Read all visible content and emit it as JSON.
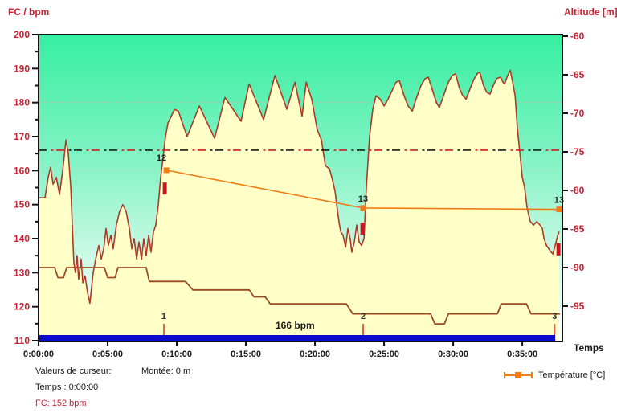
{
  "axes": {
    "left_title": "FC / bpm",
    "right_title": "Altitude [m]",
    "x_title": "Temps",
    "left_ticks": [
      200,
      190,
      180,
      170,
      160,
      150,
      140,
      130,
      120,
      110
    ],
    "right_ticks": [
      -60,
      -65,
      -70,
      -75,
      -80,
      -85,
      -90,
      -95
    ],
    "x_tick_labels": [
      "0:00:00",
      "0:05:00",
      "0:10:00",
      "0:15:00",
      "0:20:00",
      "0:25:00",
      "0:30:00",
      "0:35:00"
    ],
    "x_tick_seconds": [
      0,
      300,
      600,
      900,
      1200,
      1500,
      1800,
      2100
    ],
    "axis_text_color": "#cc2233",
    "x_text_color": "#1a1a1a"
  },
  "chart_data": {
    "type": "line",
    "title": "",
    "x_range_seconds": [
      0,
      2274
    ],
    "y_left_range": [
      110,
      200
    ],
    "y_right_range": [
      -99.6,
      -60
    ],
    "bg_gradient": [
      "#35efa0",
      "#86f3c6",
      "#d8fbec",
      "#ffffff"
    ],
    "grid_dotted": [
      {
        "bpm": 180,
        "color": "#e3a7ad"
      },
      {
        "bpm": 160,
        "color": "#a6d9c2"
      }
    ],
    "target_line": {
      "bpm": 166,
      "label": "166 bpm",
      "colors": [
        "#1a1a1a",
        "#cc2222"
      ]
    },
    "series": {
      "fc": {
        "name": "FC",
        "unit": "bpm",
        "color": "#ad3a28",
        "fill": "#ffffc8",
        "points": [
          [
            0,
            152
          ],
          [
            28,
            152
          ],
          [
            42,
            158
          ],
          [
            52,
            161
          ],
          [
            63,
            156
          ],
          [
            77,
            158
          ],
          [
            91,
            153
          ],
          [
            105,
            160
          ],
          [
            119,
            169
          ],
          [
            129,
            165
          ],
          [
            140,
            155
          ],
          [
            153,
            133
          ],
          [
            160,
            130
          ],
          [
            167,
            135
          ],
          [
            174,
            128
          ],
          [
            185,
            134
          ],
          [
            192,
            127
          ],
          [
            202,
            129
          ],
          [
            213,
            124
          ],
          [
            223,
            121
          ],
          [
            237,
            130
          ],
          [
            251,
            135
          ],
          [
            262,
            138
          ],
          [
            272,
            134
          ],
          [
            283,
            137
          ],
          [
            293,
            143
          ],
          [
            303,
            138
          ],
          [
            314,
            141
          ],
          [
            324,
            137
          ],
          [
            338,
            144
          ],
          [
            352,
            148
          ],
          [
            366,
            150
          ],
          [
            380,
            148
          ],
          [
            394,
            143
          ],
          [
            405,
            137
          ],
          [
            415,
            140
          ],
          [
            426,
            134
          ],
          [
            436,
            139
          ],
          [
            447,
            134
          ],
          [
            457,
            140
          ],
          [
            467,
            135
          ],
          [
            478,
            141
          ],
          [
            488,
            136
          ],
          [
            499,
            142
          ],
          [
            509,
            144
          ],
          [
            520,
            150
          ],
          [
            530,
            158
          ],
          [
            541,
            164
          ],
          [
            551,
            170
          ],
          [
            562,
            174
          ],
          [
            576,
            176
          ],
          [
            590,
            178
          ],
          [
            607,
            177.5
          ],
          [
            645,
            170
          ],
          [
            698,
            179
          ],
          [
            764,
            169.5
          ],
          [
            809,
            181.5
          ],
          [
            879,
            174.5
          ],
          [
            914,
            185.5
          ],
          [
            977,
            175
          ],
          [
            1026,
            188
          ],
          [
            1078,
            178
          ],
          [
            1113,
            186
          ],
          [
            1144,
            176
          ],
          [
            1162,
            186
          ],
          [
            1186,
            181
          ],
          [
            1210,
            172
          ],
          [
            1228,
            169
          ],
          [
            1245,
            161.5
          ],
          [
            1263,
            160.5
          ],
          [
            1277,
            157
          ],
          [
            1287,
            154
          ],
          [
            1298,
            148
          ],
          [
            1305,
            144.5
          ],
          [
            1312,
            142
          ],
          [
            1322,
            141
          ],
          [
            1333,
            137.5
          ],
          [
            1343,
            143
          ],
          [
            1353,
            140
          ],
          [
            1360,
            136
          ],
          [
            1371,
            139
          ],
          [
            1381,
            144
          ],
          [
            1392,
            139
          ],
          [
            1402,
            138
          ],
          [
            1413,
            140
          ],
          [
            1423,
            155
          ],
          [
            1437,
            170
          ],
          [
            1451,
            178
          ],
          [
            1465,
            182
          ],
          [
            1483,
            181
          ],
          [
            1500,
            179
          ],
          [
            1517,
            181
          ],
          [
            1538,
            184
          ],
          [
            1552,
            186
          ],
          [
            1566,
            186.5
          ],
          [
            1587,
            182
          ],
          [
            1604,
            179
          ],
          [
            1622,
            177.5
          ],
          [
            1639,
            181
          ],
          [
            1660,
            185
          ],
          [
            1678,
            187
          ],
          [
            1692,
            187.5
          ],
          [
            1713,
            183
          ],
          [
            1727,
            180
          ],
          [
            1740,
            178.5
          ],
          [
            1758,
            182
          ],
          [
            1779,
            186
          ],
          [
            1796,
            188
          ],
          [
            1810,
            188.5
          ],
          [
            1828,
            184
          ],
          [
            1842,
            182
          ],
          [
            1856,
            181
          ],
          [
            1873,
            184
          ],
          [
            1891,
            187
          ],
          [
            1905,
            188.5
          ],
          [
            1915,
            189
          ],
          [
            1932,
            185
          ],
          [
            1946,
            183
          ],
          [
            1960,
            182.5
          ],
          [
            1974,
            185
          ],
          [
            1988,
            187
          ],
          [
            2006,
            187.5
          ],
          [
            2016,
            186
          ],
          [
            2023,
            185.5
          ],
          [
            2037,
            188
          ],
          [
            2048,
            189.5
          ],
          [
            2058,
            186
          ],
          [
            2069,
            182
          ],
          [
            2079,
            172
          ],
          [
            2090,
            165
          ],
          [
            2100,
            158
          ],
          [
            2110,
            155
          ],
          [
            2121,
            149
          ],
          [
            2128,
            147
          ],
          [
            2135,
            145
          ],
          [
            2149,
            144
          ],
          [
            2163,
            145
          ],
          [
            2177,
            144
          ],
          [
            2187,
            143
          ],
          [
            2194,
            140
          ],
          [
            2205,
            138
          ],
          [
            2215,
            137
          ],
          [
            2226,
            136
          ],
          [
            2233,
            135.5
          ],
          [
            2243,
            138
          ],
          [
            2254,
            141
          ],
          [
            2260,
            142
          ]
        ]
      },
      "altitude": {
        "name": "Altitude",
        "unit": "m",
        "color": "#9c4a22",
        "points": [
          [
            0,
            -90
          ],
          [
            70,
            -90
          ],
          [
            84,
            -91.3
          ],
          [
            108,
            -91.3
          ],
          [
            122,
            -90
          ],
          [
            286,
            -90
          ],
          [
            300,
            -91.3
          ],
          [
            332,
            -91.3
          ],
          [
            345,
            -90
          ],
          [
            467,
            -90
          ],
          [
            481,
            -91.8
          ],
          [
            638,
            -91.8
          ],
          [
            670,
            -92.9
          ],
          [
            914,
            -92.9
          ],
          [
            935,
            -93.8
          ],
          [
            984,
            -93.8
          ],
          [
            1005,
            -94.7
          ],
          [
            1336,
            -94.7
          ],
          [
            1364,
            -96
          ],
          [
            1702,
            -96
          ],
          [
            1720,
            -97.3
          ],
          [
            1762,
            -97.3
          ],
          [
            1779,
            -96
          ],
          [
            1992,
            -96
          ],
          [
            2009,
            -94.7
          ],
          [
            2118,
            -94.7
          ],
          [
            2138,
            -96
          ],
          [
            2264,
            -96
          ]
        ]
      },
      "temperature": {
        "name": "Température [°C]",
        "unit": "°C",
        "color": "#ee7d16",
        "points": [
          {
            "t": 555,
            "c": 12,
            "label": "12",
            "y_bpm": 160.1
          },
          {
            "t": 1409,
            "c": 13,
            "label": "13",
            "y_bpm": 149.0
          },
          {
            "t": 2260,
            "c": 13,
            "label": "13",
            "y_bpm": 148.6
          }
        ]
      }
    },
    "laps": [
      {
        "label": "1",
        "t": 544
      },
      {
        "label": "2",
        "t": 1409
      },
      {
        "label": "3",
        "t": 2240
      }
    ],
    "interval_marks": [
      {
        "t": 548,
        "bpm": 156.5
      },
      {
        "t": 1406,
        "bpm": 144.7
      },
      {
        "t": 2257,
        "bpm": 138.6
      }
    ],
    "interval_mark_color": "#cc1520",
    "lap_tick_color": "#e0614f",
    "lap_bar": {
      "color": "#0b0bd0",
      "t_end": 2243
    }
  },
  "cursor_panel": {
    "title": "Valeurs de curseur:",
    "time_line": "Temps : 0:00:00",
    "fc_line": "FC: 152 bpm",
    "ascent_line": "Montée: 0 m"
  },
  "legend": {
    "temperature_label": "Température [°C]"
  }
}
